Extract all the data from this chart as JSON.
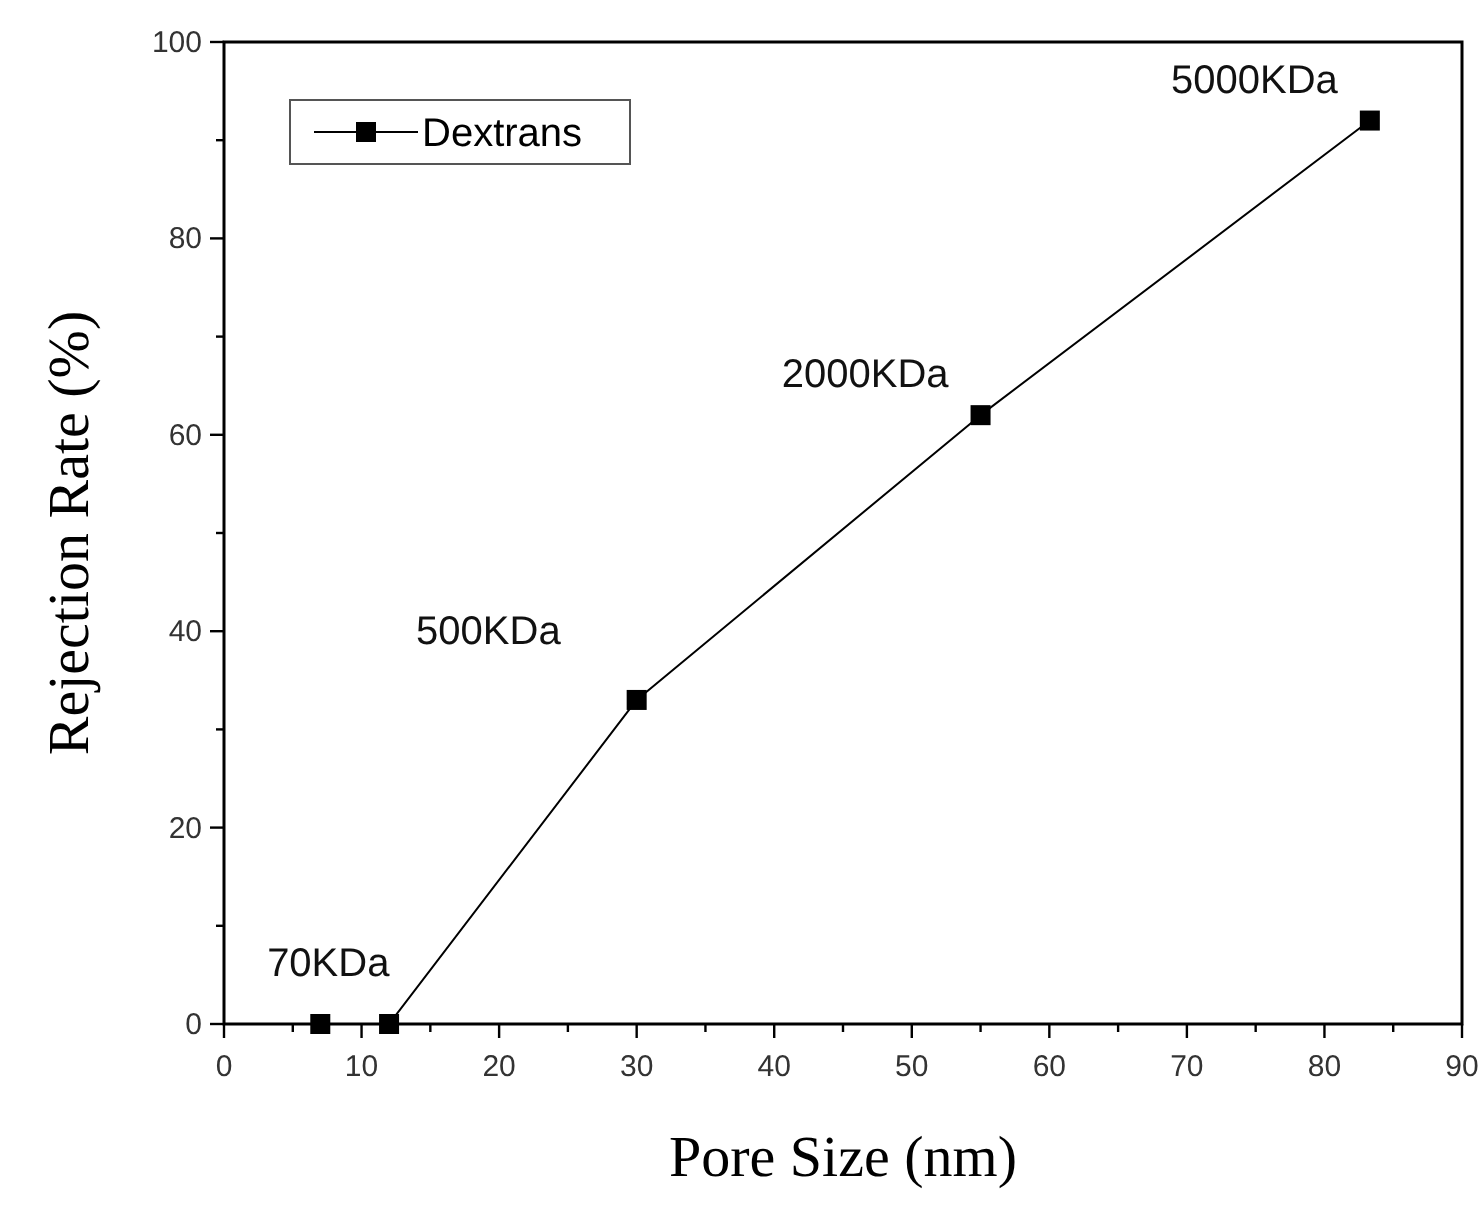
{
  "chart_data": {
    "type": "line",
    "xlabel": "Pore Size (nm)",
    "ylabel": "Rejection Rate (%)",
    "x": [
      7,
      12,
      30,
      55,
      83.3
    ],
    "series": [
      {
        "name": "Dextrans",
        "color": "#000000",
        "values": [
          0,
          0,
          33,
          62,
          92
        ]
      }
    ],
    "xlim": [
      0,
      90
    ],
    "ylim": [
      0,
      100
    ],
    "xticks": [
      0,
      {
        "value": 5,
        "label": null
      },
      10,
      {
        "value": 15,
        "label": null
      },
      20,
      {
        "value": 25,
        "label": null
      },
      30,
      {
        "value": 35,
        "label": null
      },
      40,
      {
        "value": 45,
        "label": null
      },
      50,
      {
        "value": 55,
        "label": null
      },
      60,
      {
        "value": 65,
        "label": null
      },
      70,
      {
        "value": 75,
        "label": null
      },
      80,
      {
        "value": 85,
        "label": null
      },
      90
    ],
    "yticks": [
      0,
      {
        "value": 10,
        "label": null
      },
      20,
      {
        "value": 30,
        "label": null
      },
      40,
      {
        "value": 50,
        "label": null
      },
      60,
      {
        "value": 70,
        "label": null
      },
      80,
      {
        "value": 90,
        "label": null
      },
      100
    ],
    "annotations": [
      {
        "text": "70KDa",
        "x": 7,
        "y": 0
      },
      {
        "text": "500KDa",
        "x": 30,
        "y": 33
      },
      {
        "text": "2000KDa",
        "x": 55,
        "y": 62
      },
      {
        "text": "5000KDa",
        "x": 83.3,
        "y": 92
      }
    ],
    "legend": "top left",
    "marker": "square",
    "line_style": "solid",
    "grid": false
  }
}
